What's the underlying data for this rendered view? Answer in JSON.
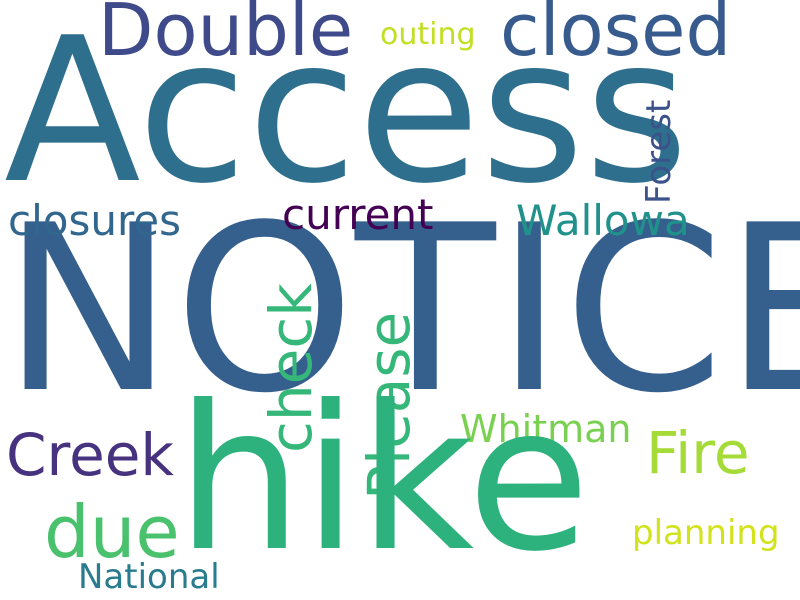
{
  "words": {
    "access": {
      "text": "Access",
      "color": "#2e6f8e"
    },
    "notice": {
      "text": "NOTICE",
      "color": "#355f8d"
    },
    "hike": {
      "text": "hike",
      "color": "#2db27d"
    },
    "double": {
      "text": "Double",
      "color": "#3e4a89"
    },
    "closed": {
      "text": "closed",
      "color": "#375b8d"
    },
    "outing": {
      "text": "outing",
      "color": "#c2df23"
    },
    "closures": {
      "text": "closures",
      "color": "#31668e"
    },
    "current": {
      "text": "current",
      "color": "#440154"
    },
    "wallowa": {
      "text": "Wallowa",
      "color": "#21918c"
    },
    "forest": {
      "text": "Forest",
      "color": "#3b528b"
    },
    "check": {
      "text": "check",
      "color": "#35b779"
    },
    "please": {
      "text": "Please",
      "color": "#35b779"
    },
    "creek": {
      "text": "Creek",
      "color": "#46327e"
    },
    "whitman": {
      "text": "Whitman",
      "color": "#7ad151"
    },
    "fire": {
      "text": "Fire",
      "color": "#a5db36"
    },
    "due": {
      "text": "due",
      "color": "#4ac16d"
    },
    "planning": {
      "text": "planning",
      "color": "#d2e21b"
    },
    "national": {
      "text": "National",
      "color": "#287c8e"
    }
  }
}
